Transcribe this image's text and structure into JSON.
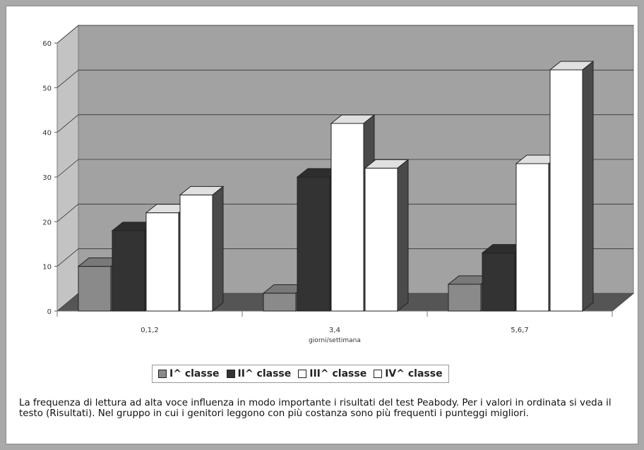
{
  "chart_data": {
    "type": "bar",
    "categories": [
      "0,1,2",
      "3,4",
      "5,6,7"
    ],
    "xlabel": "giorni/settimana",
    "ylabel": "",
    "ylim": [
      0,
      60
    ],
    "yticks": [
      0,
      10,
      20,
      30,
      40,
      50,
      60
    ],
    "grid": true,
    "legend_position": "bottom",
    "series": [
      {
        "name": "I^ classe",
        "values": [
          10,
          4,
          6
        ],
        "color": "#8a8a8a"
      },
      {
        "name": "II^ classe",
        "values": [
          18,
          30,
          13
        ],
        "color": "#333333"
      },
      {
        "name": "III^ classe",
        "values": [
          22,
          42,
          33
        ],
        "color": "#ffffff"
      },
      {
        "name": "IV^ classe",
        "values": [
          26,
          32,
          54
        ],
        "color": "#ffffff"
      }
    ]
  },
  "caption": "La frequenza di lettura ad alta voce influenza in modo importante i risultati del test Peabody. Per i valori in ordinata si veda il testo (Risultati). Nel gruppo in cui i genitori leggono con più costanza sono più frequenti i punteggi migliori."
}
